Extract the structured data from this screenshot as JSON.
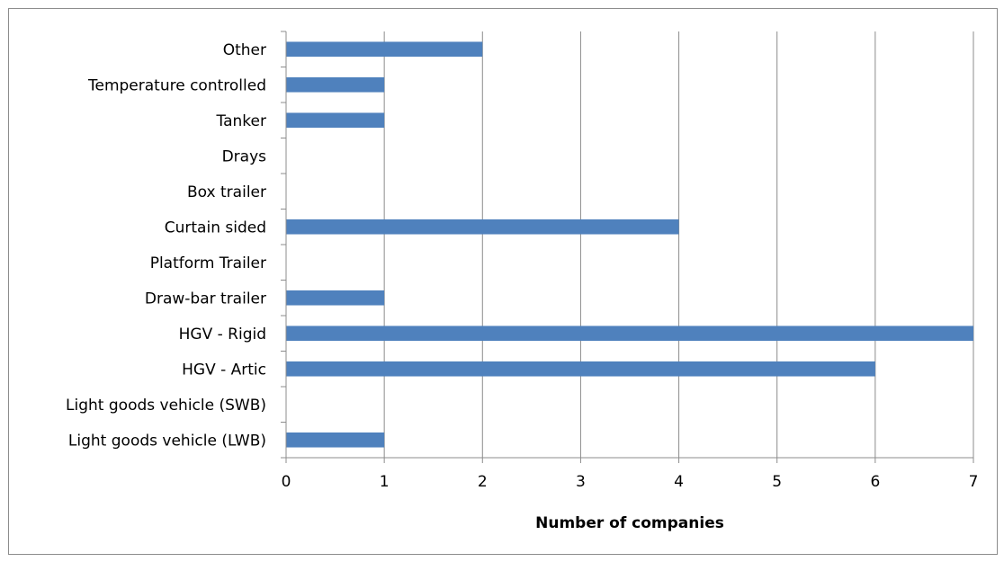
{
  "chart_data": {
    "type": "bar",
    "orientation": "horizontal",
    "categories": [
      "Light goods vehicle (LWB)",
      "Light goods vehicle (SWB)",
      "HGV - Artic",
      "HGV - Rigid",
      "Draw-bar trailer",
      "Platform Trailer",
      "Curtain sided",
      "Box trailer",
      "Drays",
      "Tanker",
      "Temperature controlled",
      "Other"
    ],
    "values": [
      1,
      0,
      6,
      7,
      1,
      0,
      4,
      0,
      0,
      1,
      1,
      2
    ],
    "xlabel": "Number of companies",
    "ylabel": "",
    "title": "",
    "xlim": [
      0,
      7
    ],
    "xticks": [
      "0",
      "1",
      "2",
      "3",
      "4",
      "5",
      "6",
      "7"
    ],
    "grid": "vertical",
    "legend": "none",
    "colors": {
      "bar": "#4f81bd",
      "grid": "#8c8c8c",
      "axis": "#8c8c8c",
      "frame": "#8c8c8c"
    }
  }
}
